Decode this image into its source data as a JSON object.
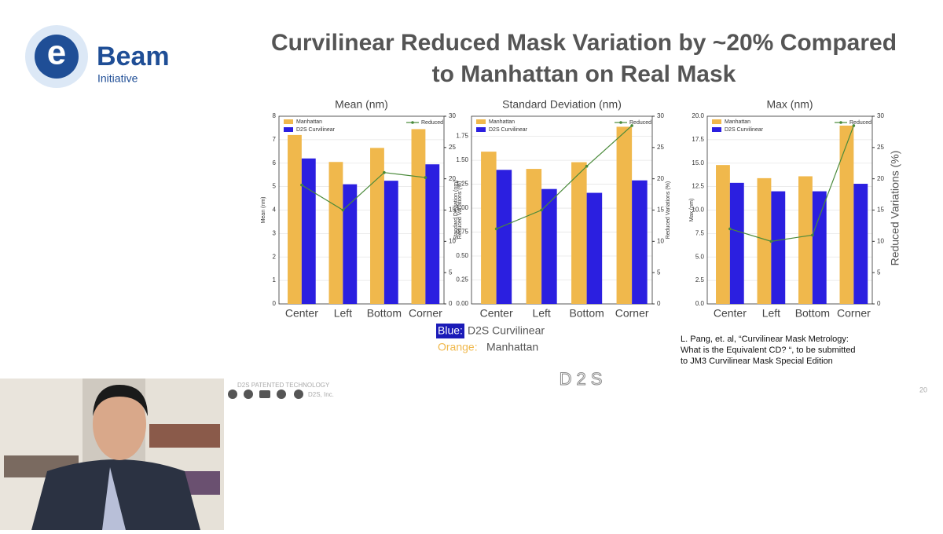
{
  "logo": {
    "letter": "e",
    "name": "Beam",
    "sub": "Initiative"
  },
  "slide_title": [
    "Curvilinear Reduced Mask Variation by ~20% Compared",
    "to Manhattan on Real Mask"
  ],
  "chart_data": [
    {
      "type": "bar",
      "title": "Mean (nm)",
      "ylabel": "Mean (nm)",
      "y2label": "Reduced Variations (%)",
      "categories": [
        "Center",
        "Left",
        "Bottom",
        "Corner"
      ],
      "series": [
        {
          "name": "Manhattan",
          "color": "#f0b84c",
          "values": [
            7.2,
            6.05,
            6.65,
            7.45
          ]
        },
        {
          "name": "D2S Curvilinear",
          "color": "#2b1fe0",
          "values": [
            6.2,
            5.1,
            5.25,
            5.95
          ]
        },
        {
          "name": "Reduced",
          "color": "#4a8a3a",
          "type": "line",
          "axis": "y2",
          "values": [
            19,
            15,
            21,
            20.2
          ]
        }
      ],
      "ylim": [
        0,
        8
      ],
      "yticks": [
        0,
        1,
        2,
        3,
        4,
        5,
        6,
        7,
        8
      ],
      "y2lim": [
        0,
        30
      ],
      "y2ticks": [
        0,
        5,
        10,
        15,
        20,
        25,
        30
      ]
    },
    {
      "type": "bar",
      "title": "Standard Deviation (nm)",
      "ylabel": "Standard Deviation (nm)",
      "y2label": "Reduced Variations (%)",
      "categories": [
        "Center",
        "Left",
        "Bottom",
        "Corner"
      ],
      "series": [
        {
          "name": "Manhattan",
          "color": "#f0b84c",
          "values": [
            1.59,
            1.41,
            1.48,
            1.85
          ]
        },
        {
          "name": "D2S Curvilinear",
          "color": "#2b1fe0",
          "values": [
            1.4,
            1.2,
            1.16,
            1.29
          ]
        },
        {
          "name": "Reduced",
          "color": "#4a8a3a",
          "type": "line",
          "axis": "y2",
          "values": [
            12,
            15,
            22,
            28.5
          ]
        }
      ],
      "ylim": [
        0,
        1.96
      ],
      "yticks": [
        {
          "value": 0,
          "label": "0.00"
        },
        {
          "value": 0.25,
          "label": "0.25"
        },
        {
          "value": 0.5,
          "label": "0.50"
        },
        {
          "value": 0.75,
          "label": "0.75"
        },
        {
          "value": 1,
          "label": "1.00"
        },
        {
          "value": 1.25,
          "label": "1.25"
        },
        {
          "value": 1.5,
          "label": "1.50"
        },
        {
          "value": 1.75,
          "label": "1.75"
        }
      ],
      "y2lim": [
        0,
        30
      ],
      "y2ticks": [
        0,
        5,
        10,
        15,
        20,
        25,
        30
      ]
    },
    {
      "type": "bar",
      "title": "Max (nm)",
      "ylabel": "Max (nm)",
      "y2label": "Reduced Variations (%)",
      "categories": [
        "Center",
        "Left",
        "Bottom",
        "Corner"
      ],
      "series": [
        {
          "name": "Manhattan",
          "color": "#f0b84c",
          "values": [
            14.8,
            13.4,
            13.6,
            19
          ]
        },
        {
          "name": "D2S Curvilinear",
          "color": "#2b1fe0",
          "values": [
            12.9,
            12,
            12,
            12.8
          ]
        },
        {
          "name": "Reduced",
          "color": "#4a8a3a",
          "type": "line",
          "axis": "y2",
          "values": [
            12,
            10,
            11,
            28.5
          ]
        }
      ],
      "ylim": [
        0,
        20
      ],
      "yticks": [
        {
          "value": 0,
          "label": "0.0"
        },
        {
          "value": 2.5,
          "label": "2.5"
        },
        {
          "value": 5,
          "label": "5.0"
        },
        {
          "value": 7.5,
          "label": "7.5"
        },
        {
          "value": 10,
          "label": "10.0"
        },
        {
          "value": 12.5,
          "label": "12.5"
        },
        {
          "value": 15,
          "label": "15.0"
        },
        {
          "value": 17.5,
          "label": "17.5"
        },
        {
          "value": 20,
          "label": "20.0"
        }
      ],
      "y2lim": [
        0,
        30
      ],
      "y2ticks": [
        0,
        5,
        10,
        15,
        20,
        25,
        30
      ]
    }
  ],
  "color_note": [
    {
      "key": "Blue:",
      "text": "D2S Curvilinear"
    },
    {
      "key": "Orange:",
      "text": "Manhattan"
    }
  ],
  "citation": [
    "L. Pang, et. al, “Curvilinear Mask Metrology:",
    "What is the Equivalent CD? “, to be submitted",
    "to JM3 Curvilinear Mask Special Edition"
  ],
  "footer": {
    "patent": "D2S PATENTED TECHNOLOGY",
    "copyright": "D2S, Inc.",
    "logo": "D2S",
    "page": "20"
  }
}
